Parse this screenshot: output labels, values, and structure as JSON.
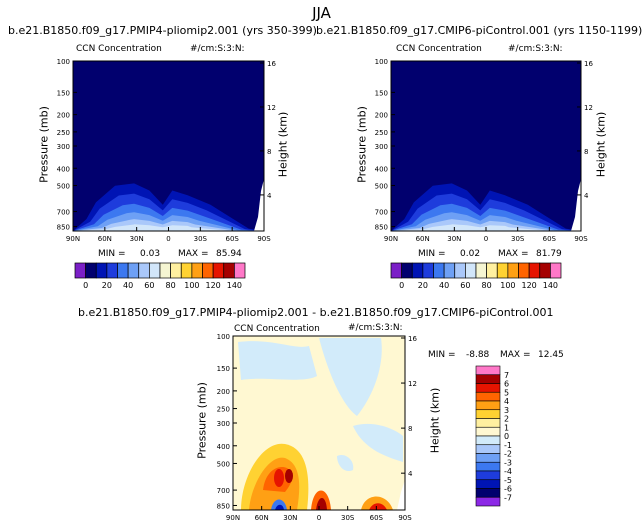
{
  "page_title": "JJA",
  "colors": {
    "seq": [
      "#7b1fc7",
      "#01006e",
      "#0014b4",
      "#1e3cdc",
      "#3c78f0",
      "#6ea0f5",
      "#aac8fa",
      "#d2e6fa",
      "#f5f5d2",
      "#fff0a0",
      "#ffd232",
      "#ffa014",
      "#ff6400",
      "#e61400",
      "#a50000",
      "#ff78c8"
    ],
    "diff": [
      "#8c28e6",
      "#01006e",
      "#0014b4",
      "#1e3cdc",
      "#3c78f0",
      "#6ea0f5",
      "#aac8fa",
      "#d2ebfa",
      "#fff8d2",
      "#fff0a0",
      "#ffd232",
      "#ffa014",
      "#ff6400",
      "#e61400",
      "#a50000",
      "#ff78c8"
    ]
  },
  "chart_data": [
    {
      "type": "heatmap",
      "title": "b.e21.B1850.f09_g17.PMIP4-pliomip2.001 (yrs 350-399)",
      "left_label": "CCN Concentration",
      "right_label": "#/cm:S:3:N:",
      "ylabel": "Pressure (mb)",
      "y2label": "Height (km)",
      "x_ticks": [
        "90N",
        "60N",
        "30N",
        "0",
        "30S",
        "60S",
        "90S"
      ],
      "y_ticks": [
        "100",
        "150",
        "200",
        "250",
        "300",
        "400",
        "500",
        "700",
        "850"
      ],
      "y2_ticks": [
        "16",
        "12",
        "8",
        "4"
      ],
      "min_label": "MIN =",
      "min_value": "0.03",
      "max_label": "MAX =",
      "max_value": "85.94",
      "colorbar_ticks": [
        "0",
        "20",
        "40",
        "60",
        "80",
        "100",
        "120",
        "140"
      ]
    },
    {
      "type": "heatmap",
      "title": "b.e21.B1850.f09_g17.CMIP6-piControl.001 (yrs 1150-1199)",
      "left_label": "CCN Concentration",
      "right_label": "#/cm:S:3:N:",
      "ylabel": "Pressure (mb)",
      "y2label": "Height (km)",
      "x_ticks": [
        "90N",
        "60N",
        "30N",
        "0",
        "30S",
        "60S",
        "90S"
      ],
      "y_ticks": [
        "100",
        "150",
        "200",
        "250",
        "300",
        "400",
        "500",
        "700",
        "850"
      ],
      "y2_ticks": [
        "16",
        "12",
        "8",
        "4"
      ],
      "min_label": "MIN =",
      "min_value": "0.02",
      "max_label": "MAX =",
      "max_value": "81.79",
      "colorbar_ticks": [
        "0",
        "20",
        "40",
        "60",
        "80",
        "100",
        "120",
        "140"
      ]
    },
    {
      "type": "heatmap",
      "title": "b.e21.B1850.f09_g17.PMIP4-pliomip2.001 - b.e21.B1850.f09_g17.CMIP6-piControl.001",
      "left_label": "CCN Concentration",
      "right_label": "#/cm:S:3:N:",
      "ylabel": "Pressure (mb)",
      "y2label": "Height (km)",
      "x_ticks": [
        "90N",
        "60N",
        "30N",
        "0",
        "30S",
        "60S",
        "90S"
      ],
      "y_ticks": [
        "100",
        "150",
        "200",
        "250",
        "300",
        "400",
        "500",
        "700",
        "850"
      ],
      "y2_ticks": [
        "16",
        "12",
        "8",
        "4"
      ],
      "min_label": "MIN =",
      "min_value": "-8.88",
      "max_label": "MAX =",
      "max_value": "12.45",
      "colorbar_ticks": [
        "7",
        "6",
        "5",
        "4",
        "3",
        "2",
        "1",
        "0",
        "-1",
        "-2",
        "-3",
        "-4",
        "-5",
        "-6",
        "-7"
      ]
    }
  ]
}
